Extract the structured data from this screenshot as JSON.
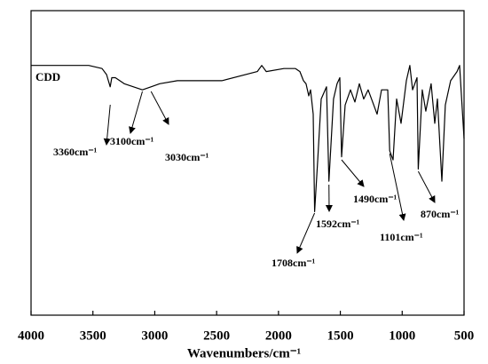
{
  "chart_data": {
    "type": "line",
    "xlabel": "Wavenumbers/cm⁻¹",
    "xlim": [
      4000,
      500
    ],
    "ylim": [
      0,
      100
    ],
    "xticks": [
      4000,
      3500,
      3000,
      2500,
      2000,
      1500,
      1000,
      500
    ],
    "series": [
      {
        "name": "CDD",
        "color": "#000000",
        "x": [
          4000,
          3534,
          3426,
          3390,
          3360,
          3347,
          3319,
          3247,
          3100,
          3030,
          2960,
          2817,
          2458,
          2171,
          2135,
          2099,
          1956,
          1863,
          1827,
          1798,
          1777,
          1755,
          1741,
          1719,
          1708,
          1683,
          1655,
          1612,
          1592,
          1555,
          1526,
          1504,
          1490,
          1461,
          1418,
          1382,
          1346,
          1311,
          1275,
          1239,
          1203,
          1167,
          1117,
          1101,
          1074,
          1045,
          1009,
          966,
          938,
          916,
          880,
          870,
          838,
          809,
          766,
          737,
          715,
          679,
          651,
          608,
          557,
          536,
          500
        ],
        "values": [
          82,
          82,
          81,
          79,
          75,
          78,
          78,
          76,
          74,
          75,
          76,
          77,
          77,
          80,
          82,
          80,
          81,
          81,
          80,
          77,
          76,
          72,
          74,
          66,
          34,
          51,
          71,
          75,
          44,
          71,
          76,
          78,
          52,
          69,
          74,
          70,
          76,
          71,
          74,
          70,
          66,
          74,
          74,
          54,
          51,
          71,
          63,
          77,
          82,
          74,
          78,
          48,
          74,
          67,
          76,
          63,
          71,
          44,
          69,
          77,
          80,
          82,
          58
        ]
      }
    ],
    "annotations": [
      {
        "text": "3360cm⁻¹",
        "x": 3360
      },
      {
        "text": "3100cm⁻¹",
        "x": 3100
      },
      {
        "text": "3030cm⁻¹",
        "x": 3030
      },
      {
        "text": "1708cm⁻¹",
        "x": 1708
      },
      {
        "text": "1592cm⁻¹",
        "x": 1592
      },
      {
        "text": "1490cm⁻¹",
        "x": 1490
      },
      {
        "text": "1101cm⁻¹",
        "x": 1101
      },
      {
        "text": "870cm⁻¹",
        "x": 870
      }
    ]
  }
}
